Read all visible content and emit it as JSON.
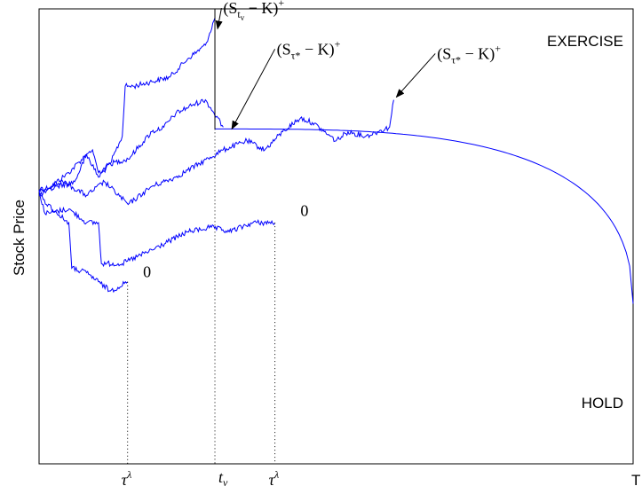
{
  "chart_data": {
    "type": "line",
    "title": "",
    "ylabel": "Stock Price",
    "xlabel": "",
    "x_range": [
      0,
      1
    ],
    "y_range": [
      0,
      1
    ],
    "grid": false,
    "legend": "none",
    "colors": {
      "paths": "#0000ff",
      "axes": "#000000"
    },
    "region_labels": {
      "exercise": "EXERCISE",
      "hold": "HOLD"
    },
    "tick_labels": {
      "tau_lambda": "τ",
      "tau_sup": "λ",
      "t_base": "t",
      "t_sub": "v",
      "T": "T"
    },
    "tick_x": {
      "tau_lambda_1": 0.149,
      "t_v": 0.296,
      "tau_lambda_2": 0.397,
      "T": 1.0
    },
    "boundary": {
      "t_start": 0.296,
      "s_start": 0.736,
      "t_end": 1.0,
      "s_end": 0.352,
      "jump_t": 0.296,
      "jump_low": 0.736,
      "jump_high": 1.0
    },
    "paths": [
      {
        "name": "",
        "points": [
          [
            0,
            0.6
          ],
          [
            0.02,
            0.61
          ],
          [
            0.05,
            0.64
          ],
          [
            0.08,
            0.68
          ],
          [
            0.1,
            0.63
          ],
          [
            0.12,
            0.66
          ],
          [
            0.14,
            0.72
          ],
          [
            0.145,
            0.83
          ],
          [
            0.16,
            0.83
          ],
          [
            0.19,
            0.84
          ],
          [
            0.22,
            0.85
          ],
          [
            0.25,
            0.89
          ],
          [
            0.28,
            0.92
          ],
          [
            0.296,
            0.98
          ]
        ]
      },
      {
        "name": "",
        "points": [
          [
            0,
            0.59
          ],
          [
            0.03,
            0.61
          ],
          [
            0.06,
            0.62
          ],
          [
            0.08,
            0.68
          ],
          [
            0.09,
            0.69
          ],
          [
            0.1,
            0.64
          ],
          [
            0.12,
            0.66
          ],
          [
            0.15,
            0.67
          ],
          [
            0.19,
            0.73
          ],
          [
            0.21,
            0.74
          ],
          [
            0.23,
            0.77
          ],
          [
            0.26,
            0.79
          ],
          [
            0.28,
            0.8
          ],
          [
            0.31,
            0.74
          ]
        ]
      },
      {
        "name": "",
        "points": [
          [
            0,
            0.6
          ],
          [
            0.04,
            0.62
          ],
          [
            0.08,
            0.59
          ],
          [
            0.11,
            0.62
          ],
          [
            0.15,
            0.57
          ],
          [
            0.19,
            0.61
          ],
          [
            0.23,
            0.63
          ],
          [
            0.27,
            0.66
          ],
          [
            0.31,
            0.69
          ],
          [
            0.35,
            0.71
          ],
          [
            0.38,
            0.69
          ],
          [
            0.41,
            0.73
          ],
          [
            0.44,
            0.76
          ],
          [
            0.46,
            0.75
          ],
          [
            0.48,
            0.73
          ],
          [
            0.5,
            0.71
          ],
          [
            0.52,
            0.73
          ],
          [
            0.55,
            0.72
          ],
          [
            0.57,
            0.73
          ],
          [
            0.59,
            0.74
          ],
          [
            0.597,
            0.8
          ]
        ]
      },
      {
        "name": "",
        "points": [
          [
            0,
            0.6
          ],
          [
            0.01,
            0.55
          ],
          [
            0.05,
            0.56
          ],
          [
            0.08,
            0.53
          ],
          [
            0.1,
            0.53
          ],
          [
            0.105,
            0.44
          ],
          [
            0.14,
            0.44
          ],
          [
            0.19,
            0.47
          ],
          [
            0.22,
            0.49
          ],
          [
            0.25,
            0.51
          ],
          [
            0.29,
            0.52
          ],
          [
            0.32,
            0.51
          ],
          [
            0.36,
            0.53
          ],
          [
            0.397,
            0.53
          ]
        ]
      },
      {
        "name": "",
        "points": [
          [
            0,
            0.59
          ],
          [
            0.03,
            0.55
          ],
          [
            0.05,
            0.53
          ],
          [
            0.055,
            0.43
          ],
          [
            0.08,
            0.42
          ],
          [
            0.1,
            0.4
          ],
          [
            0.12,
            0.38
          ],
          [
            0.149,
            0.4
          ]
        ]
      }
    ],
    "dotted_verticals": [
      {
        "x": 0.149,
        "y_top": 0.4
      },
      {
        "x": 0.296,
        "y_top": 0.736
      },
      {
        "x": 0.397,
        "y_top": 0.53
      }
    ],
    "annotations": [
      {
        "id": "payoff_tv",
        "text_left": "(S",
        "sub": "t",
        "subsub": "v",
        "text_right": " − K)",
        "sup": "+",
        "arrow_to": [
          0.296,
          0.96
        ],
        "label_at": [
          0.31,
          0.99
        ]
      },
      {
        "id": "payoff_tau_1",
        "text_left": "(S",
        "sub": "τ*",
        "subsub": "",
        "text_right": " − K)",
        "sup": "+",
        "arrow_to": [
          0.32,
          0.74
        ],
        "label_at": [
          0.4,
          0.9
        ]
      },
      {
        "id": "payoff_tau_2",
        "text_left": "(S",
        "sub": "τ*",
        "subsub": "",
        "text_right": " − K)",
        "sup": "+",
        "arrow_to": [
          0.597,
          0.81
        ],
        "label_at": [
          0.67,
          0.89
        ]
      },
      {
        "id": "zero_1",
        "text_left": "0",
        "sub": "",
        "subsub": "",
        "text_right": "",
        "sup": "",
        "arrow_to": null,
        "label_at": [
          0.44,
          0.545
        ]
      },
      {
        "id": "zero_2",
        "text_left": "0",
        "sub": "",
        "subsub": "",
        "text_right": "",
        "sup": "",
        "arrow_to": null,
        "label_at": [
          0.175,
          0.41
        ]
      }
    ]
  }
}
